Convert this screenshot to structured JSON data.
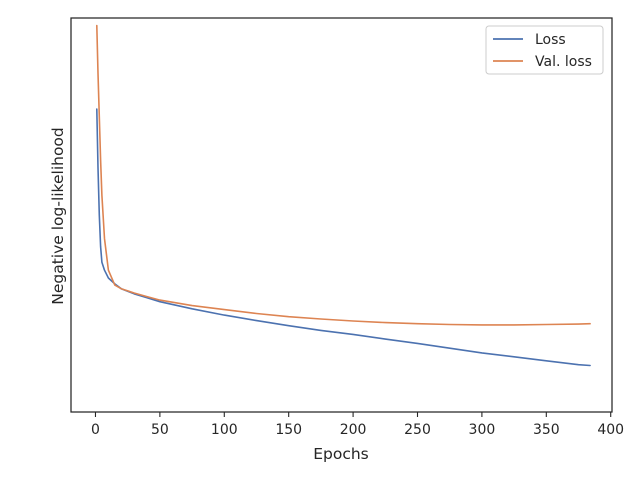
{
  "chart_data": {
    "type": "line",
    "title": "",
    "xlabel": "Epochs",
    "ylabel": "Negative log-likelihood",
    "xlim": [
      -19,
      401
    ],
    "ylim": [
      0,
      1
    ],
    "xticks": [
      0,
      50,
      100,
      150,
      200,
      250,
      300,
      350,
      400
    ],
    "yticks": [],
    "ytick_labels_shown": false,
    "grid": false,
    "legend": "top-right",
    "series": [
      {
        "name": "Loss",
        "color": "#4c72b0",
        "x": [
          1,
          2,
          3,
          4,
          5,
          7,
          10,
          15,
          20,
          30,
          40,
          50,
          75,
          100,
          125,
          150,
          175,
          200,
          225,
          250,
          275,
          300,
          325,
          350,
          375,
          384
        ],
        "y": [
          0.769,
          0.62,
          0.5,
          0.42,
          0.38,
          0.36,
          0.34,
          0.325,
          0.313,
          0.3,
          0.29,
          0.28,
          0.262,
          0.246,
          0.232,
          0.219,
          0.207,
          0.197,
          0.185,
          0.174,
          0.162,
          0.15,
          0.14,
          0.13,
          0.12,
          0.118
        ]
      },
      {
        "name": "Val. loss",
        "color": "#dd8452",
        "x": [
          1,
          2,
          3,
          4,
          5,
          7,
          10,
          15,
          20,
          30,
          40,
          50,
          75,
          100,
          125,
          150,
          175,
          200,
          225,
          250,
          275,
          300,
          325,
          350,
          375,
          384
        ],
        "y": [
          0.981,
          0.86,
          0.75,
          0.64,
          0.55,
          0.44,
          0.36,
          0.322,
          0.313,
          0.302,
          0.293,
          0.284,
          0.27,
          0.26,
          0.25,
          0.242,
          0.236,
          0.231,
          0.227,
          0.224,
          0.222,
          0.221,
          0.221,
          0.222,
          0.223,
          0.224
        ]
      }
    ]
  }
}
